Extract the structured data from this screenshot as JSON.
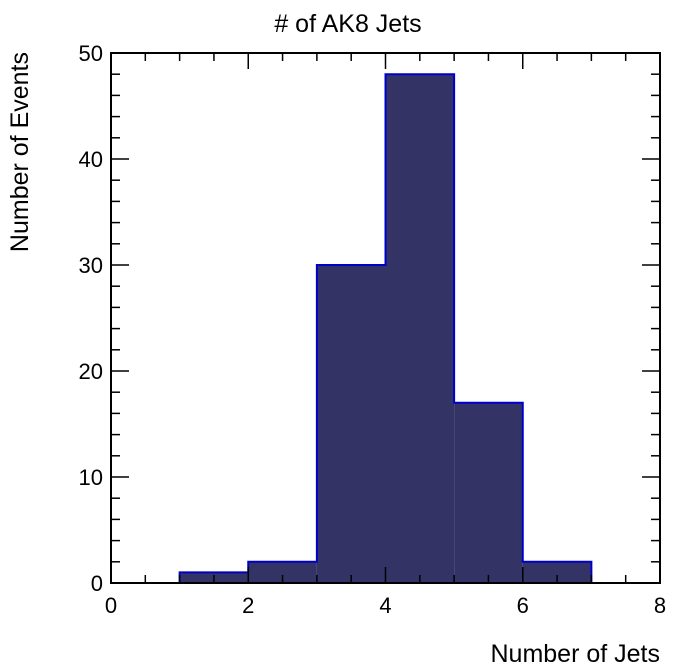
{
  "chart_data": {
    "type": "bar",
    "title": "# of AK8 Jets",
    "xlabel": "Number of Jets",
    "ylabel": "Number of Events",
    "bins": [
      {
        "x0": 0,
        "x1": 1,
        "value": 0
      },
      {
        "x0": 1,
        "x1": 2,
        "value": 1
      },
      {
        "x0": 2,
        "x1": 3,
        "value": 2
      },
      {
        "x0": 3,
        "x1": 4,
        "value": 30
      },
      {
        "x0": 4,
        "x1": 5,
        "value": 48
      },
      {
        "x0": 5,
        "x1": 6,
        "value": 17
      },
      {
        "x0": 6,
        "x1": 7,
        "value": 2
      },
      {
        "x0": 7,
        "x1": 8,
        "value": 0
      }
    ],
    "xlim": [
      0,
      8
    ],
    "ylim": [
      0,
      50
    ],
    "xticks": [
      0,
      2,
      4,
      6,
      8
    ],
    "yticks": [
      0,
      10,
      20,
      30,
      40,
      50
    ],
    "fill_color": "#333366",
    "line_color": "#0000cc",
    "grid": false,
    "legend": "none"
  }
}
